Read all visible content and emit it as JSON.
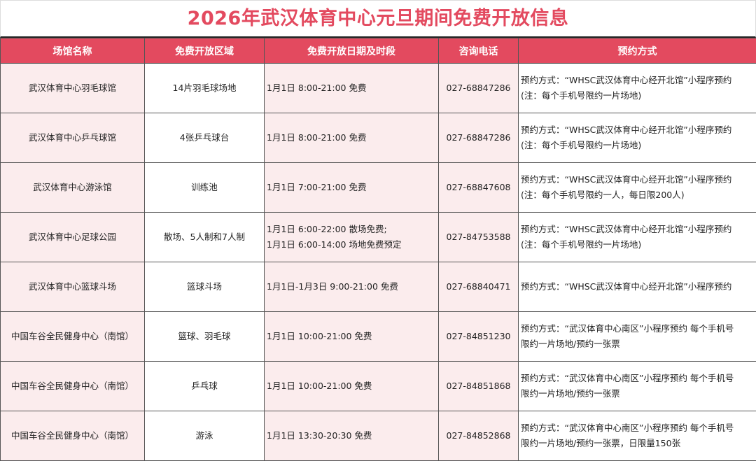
{
  "title": "2026年武汉体育中心元旦期间免费开放信息",
  "colors": {
    "accent": "#e34a5f",
    "cell_tint": "#fbeced"
  },
  "headers": [
    "场馆名称",
    "免费开放区域",
    "免费开放日期及时段",
    "咨询电话",
    "预约方式"
  ],
  "rows": [
    {
      "venue": "武汉体育中心羽毛球馆",
      "area": "14片羽毛球场地",
      "time": [
        "1月1日 8:00-21:00 免费"
      ],
      "phone": "027-68847286",
      "booking": [
        "预约方式：“WHSC武汉体育中心经开北馆”小程序预约",
        "(注：每个手机号限约一片场地)"
      ]
    },
    {
      "venue": "武汉体育中心乒乓球馆",
      "area": "4张乒乓球台",
      "time": [
        "1月1日 8:00-21:00 免费"
      ],
      "phone": "027-68847286",
      "booking": [
        "预约方式：“WHSC武汉体育中心经开北馆”小程序预约",
        "(注：每个手机号限约一片场地)"
      ]
    },
    {
      "venue": "武汉体育中心游泳馆",
      "area": "训练池",
      "time": [
        "1月1日 7:00-21:00 免费"
      ],
      "phone": "027-68847608",
      "booking": [
        "预约方式：“WHSC武汉体育中心经开北馆”小程序预约",
        "(注：每个手机号限约一人，每日限200人)"
      ]
    },
    {
      "venue": "武汉体育中心足球公园",
      "area": "散场、5人制和7人制",
      "time": [
        "1月1日 6:00-22:00 散场免费;",
        "1月1日 6:00-14:00 场地免费预定"
      ],
      "phone": "027-84753588",
      "booking": [
        "预约方式：“WHSC武汉体育中心经开北馆”小程序预约",
        "(注：每个手机号限约一片场地)"
      ]
    },
    {
      "venue": "武汉体育中心篮球斗场",
      "area": "篮球斗场",
      "time": [
        "1月1日-1月3日 9:00-21:00 免费"
      ],
      "phone": "027-68840471",
      "booking": [
        "预约方式：“WHSC武汉体育中心经开北馆”小程序预约"
      ]
    },
    {
      "venue": "中国车谷全民健身中心（南馆）",
      "area": "篮球、羽毛球",
      "time": [
        "1月1日 10:00-21:00 免费"
      ],
      "phone": "027-84851230",
      "booking": [
        "预约方式：“武汉体育中心南区”小程序预约 每个手机号",
        "限约一片场地/预约一张票"
      ]
    },
    {
      "venue": "中国车谷全民健身中心（南馆）",
      "area": "乒乓球",
      "time": [
        "1月1日 10:00-21:00 免费"
      ],
      "phone": "027-84851868",
      "booking": [
        "预约方式：“武汉体育中心南区”小程序预约 每个手机号",
        "限约一片场地/预约一张票"
      ]
    },
    {
      "venue": "中国车谷全民健身中心（南馆）",
      "area": "游泳",
      "time": [
        "1月1日 13:30-20:30 免费"
      ],
      "phone": "027-84852868",
      "booking": [
        "预约方式：“武汉体育中心南区”小程序预约 每个手机号",
        "限约一片场地/预约一张票，日限量150张"
      ]
    }
  ]
}
